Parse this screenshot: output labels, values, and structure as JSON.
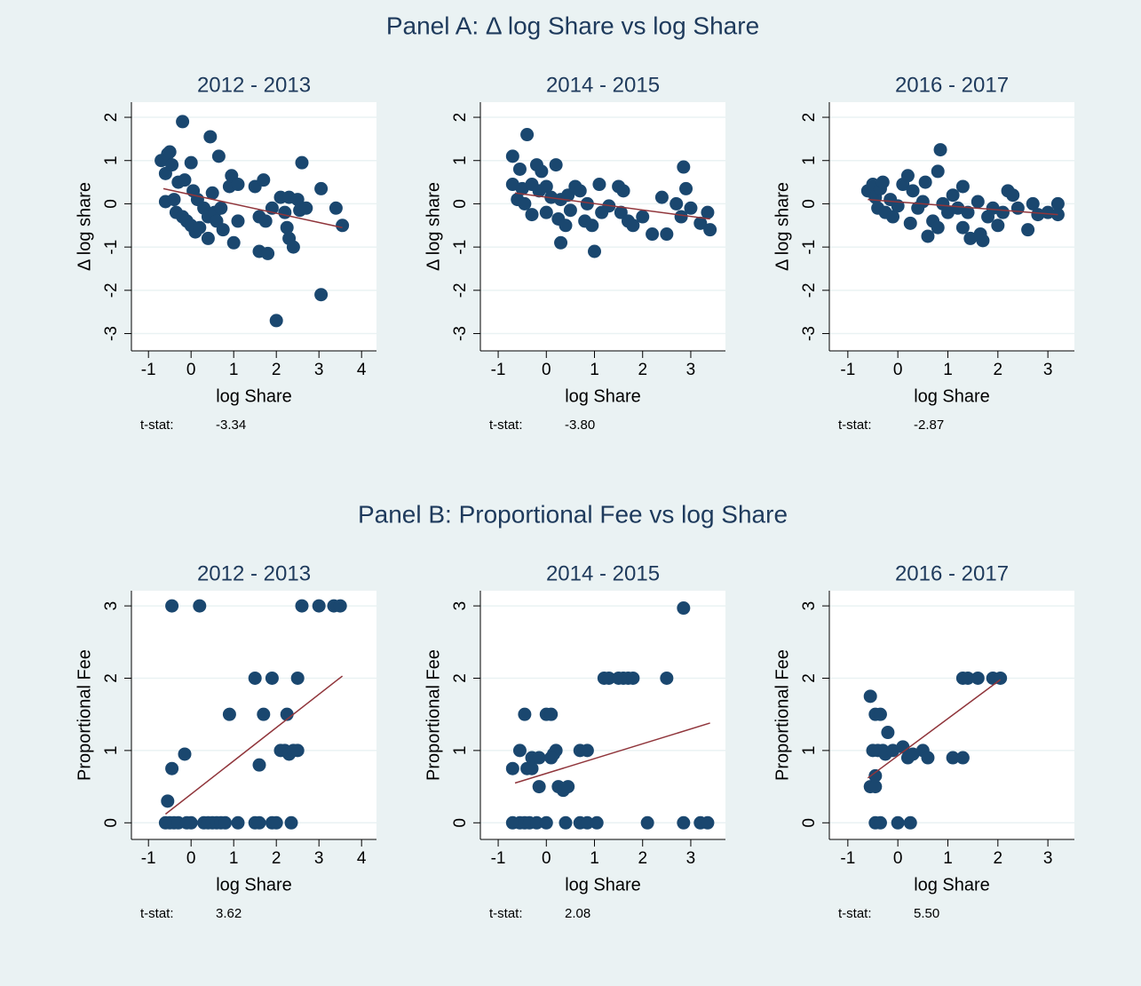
{
  "panels": [
    {
      "title": "Panel A: Δ log Share vs log Share"
    },
    {
      "title": "Panel B: Proportional Fee vs log Share"
    }
  ],
  "chart_data": [
    {
      "type": "scatter",
      "title": "2012 - 2013",
      "xlabel": "log Share",
      "ylabel": "Δ log share",
      "color": "#1a476f",
      "fit_color": "#90353b",
      "xlim": [
        -1.4,
        4.35
      ],
      "xticks": [
        -1,
        0,
        1,
        2,
        3,
        4
      ],
      "ylim": [
        -3.4,
        2.35
      ],
      "yticks": [
        2,
        1,
        0,
        -1,
        -2,
        -3
      ],
      "grid": true,
      "x": [
        -0.7,
        -0.55,
        -0.5,
        -0.6,
        -0.45,
        -0.2,
        -0.6,
        -0.4,
        -0.3,
        -0.15,
        -0.35,
        -0.2,
        -0.1,
        0,
        0.1,
        0.2,
        0,
        0.05,
        0.15,
        0.3,
        0.4,
        0.4,
        0.45,
        0.5,
        0.55,
        0.6,
        0.65,
        0.7,
        0.75,
        0.9,
        0.95,
        1.0,
        1.1,
        1.1,
        1.5,
        1.6,
        1.6,
        1.7,
        1.75,
        1.8,
        1.9,
        2.0,
        2.1,
        2.2,
        2.25,
        2.3,
        2.3,
        2.4,
        2.5,
        2.55,
        2.6,
        2.7,
        3.05,
        3.05,
        3.4,
        3.55
      ],
      "values": [
        1.0,
        1.15,
        1.2,
        0.7,
        0.9,
        1.9,
        0.05,
        0.1,
        0.5,
        0.55,
        -0.2,
        -0.3,
        -0.4,
        -0.5,
        -0.65,
        -0.55,
        0.95,
        0.3,
        0.1,
        -0.1,
        -0.3,
        -0.8,
        1.55,
        0.25,
        -0.2,
        -0.4,
        1.1,
        -0.1,
        -0.6,
        0.4,
        0.65,
        -0.9,
        0.45,
        -0.4,
        0.4,
        -0.3,
        -1.1,
        0.55,
        -0.4,
        -1.15,
        -0.1,
        -2.7,
        0.15,
        -0.2,
        -0.55,
        0.15,
        -0.8,
        -1.0,
        0.1,
        -0.15,
        0.95,
        -0.1,
        0.35,
        -2.1,
        -0.1,
        -0.5
      ],
      "fit": {
        "x": [
          -0.65,
          3.55
        ],
        "y": [
          0.35,
          -0.55
        ]
      },
      "stat_name": "t-stat:",
      "t_stat": -3.34
    },
    {
      "type": "scatter",
      "title": "2014 - 2015",
      "xlabel": "log Share",
      "ylabel": "Δ log share",
      "color": "#1a476f",
      "fit_color": "#90353b",
      "xlim": [
        -1.37,
        3.72
      ],
      "xticks": [
        -1,
        0,
        1,
        2,
        3
      ],
      "ylim": [
        -3.4,
        2.35
      ],
      "yticks": [
        2,
        1,
        0,
        -1,
        -2,
        -3
      ],
      "grid": true,
      "x": [
        -0.7,
        -0.7,
        -0.55,
        -0.4,
        -0.5,
        -0.6,
        -0.45,
        -0.3,
        -0.3,
        -0.2,
        -0.15,
        -0.1,
        0,
        0,
        0.1,
        0.2,
        0.25,
        0.3,
        0.3,
        0.4,
        0.45,
        0.5,
        0.6,
        0.7,
        0.8,
        0.85,
        0.95,
        1.0,
        1.1,
        1.15,
        1.3,
        1.5,
        1.55,
        1.6,
        1.7,
        1.8,
        2.0,
        2.2,
        2.4,
        2.5,
        2.7,
        2.8,
        2.85,
        2.9,
        3.0,
        3.2,
        3.35,
        3.4
      ],
      "values": [
        1.1,
        0.45,
        0.8,
        1.6,
        0.35,
        0.1,
        0,
        0.45,
        -0.25,
        0.9,
        0.3,
        0.75,
        0.4,
        -0.2,
        0.15,
        0.9,
        -0.35,
        -0.9,
        0.1,
        -0.5,
        0.2,
        -0.15,
        0.4,
        0.3,
        -0.4,
        0.0,
        -0.5,
        -1.1,
        0.45,
        -0.2,
        -0.05,
        0.4,
        -0.2,
        0.3,
        -0.4,
        -0.5,
        -0.3,
        -0.7,
        0.15,
        -0.7,
        0.0,
        -0.3,
        0.85,
        0.35,
        -0.1,
        -0.45,
        -0.2,
        -0.6
      ],
      "fit": {
        "x": [
          -0.65,
          3.4
        ],
        "y": [
          0.25,
          -0.35
        ]
      },
      "stat_name": "t-stat:",
      "t_stat": -3.8,
      "t_stat_label": "-3.80"
    },
    {
      "type": "scatter",
      "title": "2016 - 2017",
      "xlabel": "log Share",
      "ylabel": "Δ log share",
      "color": "#1a476f",
      "fit_color": "#90353b",
      "xlim": [
        -1.37,
        3.53
      ],
      "xticks": [
        -1,
        0,
        1,
        2,
        3
      ],
      "ylim": [
        -3.4,
        2.35
      ],
      "yticks": [
        2,
        1,
        0,
        -1,
        -2,
        -3
      ],
      "grid": true,
      "x": [
        -0.6,
        -0.5,
        -0.45,
        -0.35,
        -0.3,
        -0.4,
        -0.25,
        -0.15,
        -0.1,
        0,
        0.1,
        0.2,
        0.25,
        0.3,
        0.4,
        0.5,
        0.55,
        0.6,
        0.7,
        0.8,
        0.8,
        0.85,
        0.9,
        1.0,
        1.1,
        1.2,
        1.3,
        1.3,
        1.4,
        1.45,
        1.6,
        1.65,
        1.7,
        1.8,
        1.9,
        2.0,
        2.1,
        2.2,
        2.3,
        2.4,
        2.6,
        2.7,
        2.8,
        3.0,
        3.2,
        3.2
      ],
      "values": [
        0.3,
        0.45,
        0.15,
        0.35,
        0.5,
        -0.1,
        -0.2,
        0.1,
        -0.3,
        -0.05,
        0.45,
        0.65,
        -0.45,
        0.3,
        -0.1,
        0.05,
        0.5,
        -0.75,
        -0.4,
        -0.55,
        0.75,
        1.25,
        0.0,
        -0.2,
        0.2,
        -0.1,
        0.4,
        -0.55,
        -0.2,
        -0.8,
        0.05,
        -0.7,
        -0.85,
        -0.3,
        -0.1,
        -0.5,
        -0.2,
        0.3,
        0.2,
        -0.1,
        -0.6,
        0.0,
        -0.25,
        -0.2,
        0.0,
        -0.25
      ],
      "fit": {
        "x": [
          -0.6,
          3.2
        ],
        "y": [
          0.1,
          -0.25
        ]
      },
      "stat_name": "t-stat:",
      "t_stat": -2.87
    },
    {
      "type": "scatter",
      "title": "2012 - 2013",
      "xlabel": "log Share",
      "ylabel": "Proportional Fee",
      "color": "#1a476f",
      "fit_color": "#90353b",
      "xlim": [
        -1.4,
        4.35
      ],
      "xticks": [
        -1,
        0,
        1,
        2,
        3,
        4
      ],
      "ylim": [
        -0.23,
        3.21
      ],
      "yticks": [
        3,
        2,
        1,
        0
      ],
      "grid": true,
      "x": [
        -0.6,
        -0.5,
        -0.4,
        -0.3,
        -0.1,
        0.0,
        0.3,
        0.4,
        0.5,
        0.6,
        0.7,
        0.8,
        1.1,
        1.5,
        1.6,
        1.9,
        2.0,
        2.35,
        -0.55,
        -0.45,
        -0.45,
        -0.15,
        0.2,
        0.9,
        1.5,
        1.6,
        1.7,
        1.9,
        2.1,
        2.2,
        2.25,
        2.3,
        2.4,
        2.5,
        2.5,
        2.6,
        3.0,
        3.35,
        3.5
      ],
      "values": [
        0,
        0,
        0,
        0,
        0,
        0,
        0,
        0,
        0,
        0,
        0,
        0,
        0,
        0,
        0,
        0,
        0,
        0,
        0.3,
        0.75,
        3,
        0.95,
        3,
        1.5,
        2,
        0.8,
        1.5,
        2,
        1,
        1,
        1.5,
        0.95,
        1,
        1,
        2,
        3,
        3,
        3,
        3
      ],
      "fit": {
        "x": [
          -0.6,
          3.55
        ],
        "y": [
          0.12,
          2.03
        ]
      },
      "stat_name": "t-stat:",
      "t_stat": 3.62
    },
    {
      "type": "scatter",
      "title": "2014 - 2015",
      "xlabel": "log Share",
      "ylabel": "Proportional Fee",
      "color": "#1a476f",
      "fit_color": "#90353b",
      "xlim": [
        -1.37,
        3.72
      ],
      "xticks": [
        -1,
        0,
        1,
        2,
        3
      ],
      "ylim": [
        -0.23,
        3.21
      ],
      "yticks": [
        3,
        2,
        1,
        0
      ],
      "grid": true,
      "x": [
        -0.7,
        -0.55,
        -0.45,
        -0.35,
        -0.2,
        0.0,
        0.4,
        0.7,
        0.85,
        1.05,
        2.1,
        2.85,
        3.2,
        3.35,
        -0.7,
        -0.55,
        -0.45,
        -0.4,
        -0.3,
        -0.3,
        -0.15,
        0,
        0.1,
        0.15,
        0.2,
        0.1,
        -0.15,
        0.25,
        0.35,
        0.45,
        0.7,
        0.85,
        1.2,
        1.3,
        1.5,
        1.6,
        1.7,
        1.8,
        2.5,
        2.85
      ],
      "values": [
        0,
        0,
        0,
        0,
        0,
        0,
        0,
        0,
        0,
        0,
        0,
        0,
        0,
        0,
        0.75,
        1.0,
        1.5,
        0.75,
        0.75,
        0.9,
        0.9,
        1.5,
        1.5,
        0.95,
        1.0,
        0.9,
        0.5,
        0.5,
        0.45,
        0.5,
        1.0,
        1.0,
        2,
        2,
        2,
        2,
        2,
        2,
        2,
        2.97
      ],
      "fit": {
        "x": [
          -0.65,
          3.4
        ],
        "y": [
          0.55,
          1.38
        ]
      },
      "stat_name": "t-stat:",
      "t_stat": 2.08
    },
    {
      "type": "scatter",
      "title": "2016 - 2017",
      "xlabel": "log Share",
      "ylabel": "Proportional Fee",
      "color": "#1a476f",
      "fit_color": "#90353b",
      "xlim": [
        -1.37,
        3.53
      ],
      "xticks": [
        -1,
        0,
        1,
        2,
        3
      ],
      "ylim": [
        -0.23,
        3.21
      ],
      "yticks": [
        3,
        2,
        1,
        0
      ],
      "grid": true,
      "x": [
        -0.55,
        -0.55,
        -0.45,
        -0.45,
        -0.35,
        -0.45,
        -0.4,
        -0.3,
        -0.2,
        -0.25,
        -0.1,
        0.1,
        0.2,
        0.3,
        0.5,
        0.6,
        1.1,
        1.3,
        1.3,
        1.4,
        1.6,
        1.9,
        2.05,
        -0.45,
        -0.35,
        0,
        0.25,
        -0.5
      ],
      "values": [
        1.75,
        0.5,
        0.5,
        1.5,
        1.5,
        0.65,
        1.0,
        1.0,
        1.25,
        0.95,
        1.0,
        1.05,
        0.9,
        0.95,
        1.0,
        0.9,
        0.9,
        0.9,
        2,
        2,
        2,
        2,
        2,
        0,
        0,
        0,
        0,
        1.0
      ],
      "fit": {
        "x": [
          -0.6,
          2.05
        ],
        "y": [
          0.62,
          1.98
        ]
      },
      "stat_name": "t-stat:",
      "t_stat": 5.5,
      "t_stat_label": "5.50"
    }
  ]
}
